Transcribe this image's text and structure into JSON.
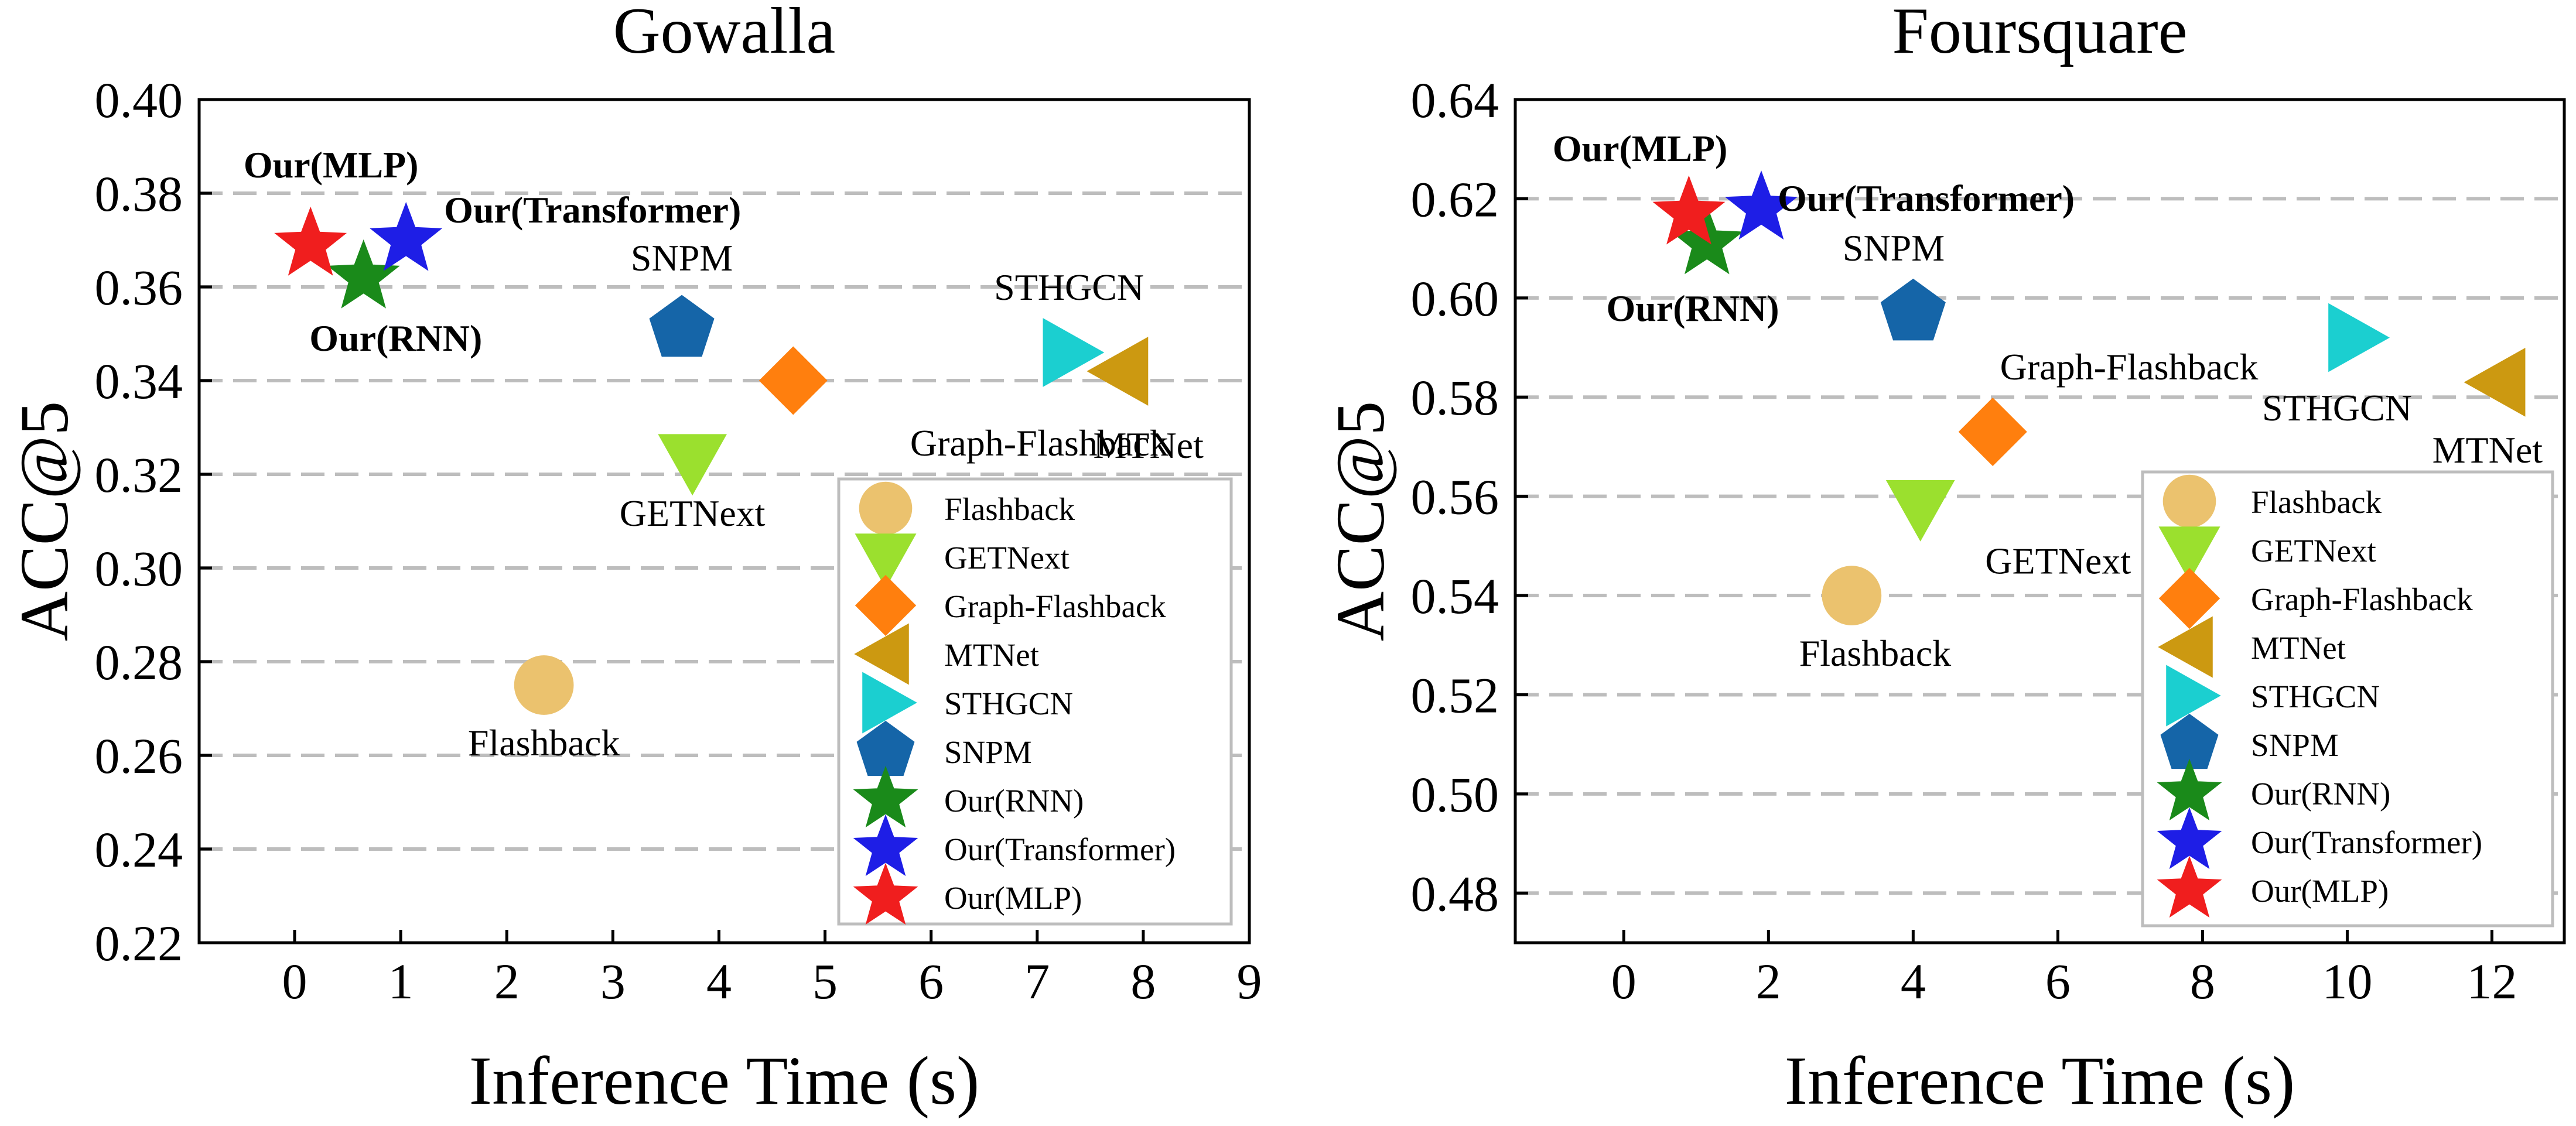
{
  "colors": {
    "Flashback": "#EBC26E",
    "GETNext": "#9BE02E",
    "Graph-Flashback": "#FF7F0E",
    "MTNet": "#CC9911",
    "STHGCN": "#1BCFD0",
    "SNPM": "#1565A8",
    "Our(RNN)": "#1A8A1A",
    "Our(Transformer)": "#1E1EE6",
    "Our(MLP)": "#F01E1E",
    "grid": "#BDBDBD",
    "legend_border": "#BDBDBD"
  },
  "legend_entries": [
    {
      "name": "Flashback",
      "icon": "circle-icon"
    },
    {
      "name": "GETNext",
      "icon": "triangle-down-icon"
    },
    {
      "name": "Graph-Flashback",
      "icon": "diamond-icon"
    },
    {
      "name": "MTNet",
      "icon": "triangle-left-icon"
    },
    {
      "name": "STHGCN",
      "icon": "triangle-right-icon"
    },
    {
      "name": "SNPM",
      "icon": "pentagon-icon"
    },
    {
      "name": "Our(RNN)",
      "icon": "star-icon"
    },
    {
      "name": "Our(Transformer)",
      "icon": "star-icon"
    },
    {
      "name": "Our(MLP)",
      "icon": "star-icon"
    }
  ],
  "chart_data": [
    {
      "type": "scatter",
      "title": "Gowalla",
      "xlabel": "Inference Time (s)",
      "ylabel": "ACC@5",
      "xlim": [
        -0.9,
        9
      ],
      "ylim": [
        0.22,
        0.4
      ],
      "xticks": [
        "0",
        "1",
        "2",
        "3",
        "4",
        "5",
        "6",
        "7",
        "8",
        "9"
      ],
      "yticks": [
        "0.22",
        "0.24",
        "0.26",
        "0.28",
        "0.30",
        "0.32",
        "0.34",
        "0.36",
        "0.38",
        "0.40"
      ],
      "grid": "horizontal dashed",
      "legend_position": "bottom-right",
      "points": [
        {
          "name": "Flashback",
          "x": 2.35,
          "y": 0.275,
          "label": "Flashback"
        },
        {
          "name": "GETNext",
          "x": 3.75,
          "y": 0.323,
          "label": "GETNext"
        },
        {
          "name": "Graph-Flashback",
          "x": 4.7,
          "y": 0.34,
          "label": "Graph-Flashback"
        },
        {
          "name": "MTNet",
          "x": 7.8,
          "y": 0.342,
          "label": "MTNet"
        },
        {
          "name": "STHGCN",
          "x": 7.3,
          "y": 0.346,
          "label": "STHGCN"
        },
        {
          "name": "SNPM",
          "x": 3.65,
          "y": 0.351,
          "label": "SNPM"
        },
        {
          "name": "Our(RNN)",
          "x": 0.65,
          "y": 0.362,
          "label": "Our(RNN)"
        },
        {
          "name": "Our(Transformer)",
          "x": 1.05,
          "y": 0.37,
          "label": "Our(Transformer)"
        },
        {
          "name": "Our(MLP)",
          "x": 0.15,
          "y": 0.369,
          "label": "Our(MLP)"
        }
      ]
    },
    {
      "type": "scatter",
      "title": "Foursquare",
      "xlabel": "Inference Time (s)",
      "ylabel": "ACC@5",
      "xlim": [
        -1.5,
        13
      ],
      "ylim": [
        0.47,
        0.64
      ],
      "xticks": [
        "0",
        "2",
        "4",
        "6",
        "8",
        "10",
        "12"
      ],
      "yticks": [
        "0.48",
        "0.50",
        "0.52",
        "0.54",
        "0.56",
        "0.58",
        "0.60",
        "0.62",
        "0.64"
      ],
      "grid": "horizontal dashed",
      "legend_position": "bottom-right",
      "points": [
        {
          "name": "Flashback",
          "x": 3.15,
          "y": 0.54,
          "label": "Flashback"
        },
        {
          "name": "GETNext",
          "x": 4.1,
          "y": 0.558,
          "label": "GETNext"
        },
        {
          "name": "Graph-Flashback",
          "x": 5.1,
          "y": 0.573,
          "label": "Graph-Flashback"
        },
        {
          "name": "MTNet",
          "x": 12.1,
          "y": 0.583,
          "label": "MTNet"
        },
        {
          "name": "STHGCN",
          "x": 10.1,
          "y": 0.592,
          "label": "STHGCN"
        },
        {
          "name": "SNPM",
          "x": 4.0,
          "y": 0.597,
          "label": "SNPM"
        },
        {
          "name": "Our(RNN)",
          "x": 1.15,
          "y": 0.611,
          "label": "Our(RNN)"
        },
        {
          "name": "Our(Transformer)",
          "x": 1.9,
          "y": 0.618,
          "label": "Our(Transformer)"
        },
        {
          "name": "Our(MLP)",
          "x": 0.9,
          "y": 0.617,
          "label": "Our(MLP)"
        }
      ]
    }
  ]
}
